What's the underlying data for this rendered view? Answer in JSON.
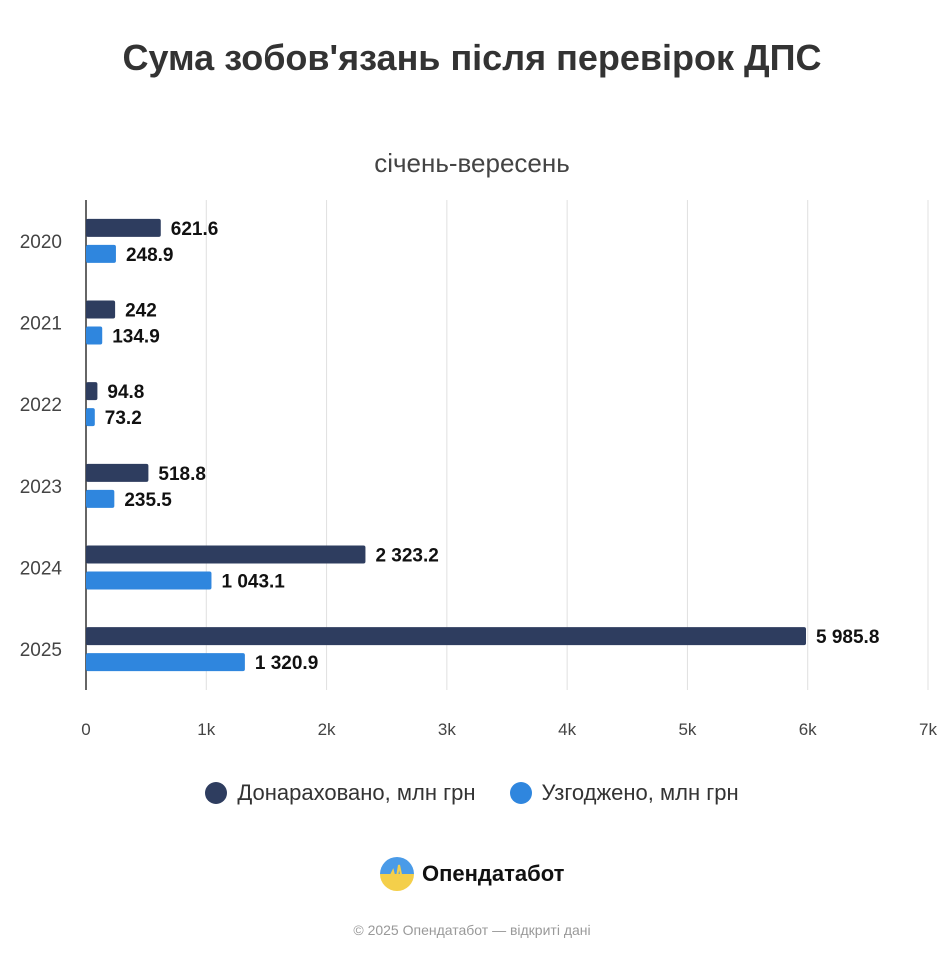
{
  "chart_data": {
    "type": "bar",
    "orientation": "horizontal",
    "title": "Сума зобов'язань після перевірок ДПС",
    "subtitle": "січень-вересень",
    "categories": [
      "2020",
      "2021",
      "2022",
      "2023",
      "2024",
      "2025"
    ],
    "series": [
      {
        "name": "Донараховано, млн грн",
        "color": "#2e3d5f",
        "values": [
          621.6,
          242,
          94.8,
          518.8,
          2323.2,
          5985.8
        ],
        "labels": [
          "621.6",
          "242",
          "94.8",
          "518.8",
          "2 323.2",
          "5 985.8"
        ]
      },
      {
        "name": "Узгоджено, млн грн",
        "color": "#2f86de",
        "values": [
          248.9,
          134.9,
          73.2,
          235.5,
          1043.1,
          1320.9
        ],
        "labels": [
          "248.9",
          "134.9",
          "73.2",
          "235.5",
          "1 043.1",
          "1 320.9"
        ]
      }
    ],
    "xlim": [
      0,
      7000
    ],
    "xticks": [
      0,
      1000,
      2000,
      3000,
      4000,
      5000,
      6000,
      7000
    ],
    "xtick_labels": [
      "0",
      "1k",
      "2k",
      "3k",
      "4k",
      "5k",
      "6k",
      "7k"
    ],
    "grid": "vertical",
    "legend": "bottom"
  },
  "brand": {
    "name": "Опендатабот"
  },
  "footer": "© 2025 Опендатабот — відкриті дані"
}
